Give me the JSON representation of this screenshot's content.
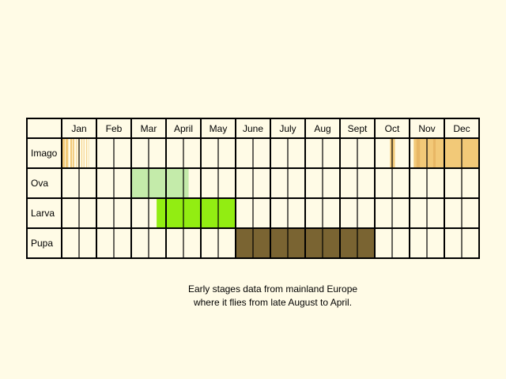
{
  "chart_data": {
    "type": "table",
    "months": [
      "Jan",
      "Feb",
      "Mar",
      "April",
      "May",
      "June",
      "July",
      "Aug",
      "Sept",
      "Oct",
      "Nov",
      "Dec"
    ],
    "stages": [
      {
        "name": "Imago",
        "color": "#f2c978",
        "fills": [
          [
            0.0,
            0.09
          ],
          [
            0.11,
            0.19
          ],
          [
            0.25,
            0.3
          ],
          [
            0.32,
            0.36
          ],
          [
            0.42,
            0.44
          ],
          [
            0.48,
            0.5
          ],
          [
            0.57,
            0.59
          ],
          [
            0.63,
            0.65
          ],
          [
            0.71,
            0.73
          ],
          [
            0.77,
            0.78
          ],
          [
            9.44,
            9.58
          ],
          [
            10.12,
            12.0
          ]
        ],
        "accent": {
          "color": "#e8b765",
          "ranges": [
            [
              10.2,
              10.3
            ],
            [
              10.68,
              10.75
            ]
          ]
        }
      },
      {
        "name": "Ova",
        "color": "#c4ebaa",
        "fills": [
          [
            2.0,
            3.65
          ]
        ]
      },
      {
        "name": "Larva",
        "color": "#92ed12",
        "fills": [
          [
            2.73,
            5.0
          ]
        ]
      },
      {
        "name": "Pupa",
        "color": "#7a6432",
        "fills": [
          [
            5.0,
            9.0
          ]
        ]
      }
    ],
    "grid": true
  },
  "caption": {
    "line1": "Early stages data from mainland Europe",
    "line2": "where it flies from late August to April."
  }
}
